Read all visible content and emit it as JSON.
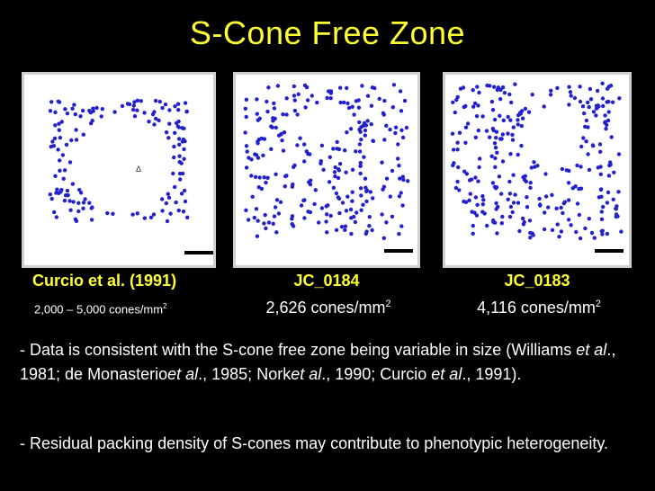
{
  "title": "S-Cone Free Zone",
  "colors": {
    "title": "#ffff33",
    "dot": "#2222cc",
    "background": "#000000"
  },
  "panels": [
    {
      "label": "Curcio et al. (1991)",
      "density": "2,000 – 5,000 cones/mm",
      "density_sup": "2",
      "marker": "Δ"
    },
    {
      "label": "JC_0184",
      "density": "2,626 cones/mm",
      "density_sup": "2"
    },
    {
      "label": "JC_0183",
      "density": "4,116 cones/mm",
      "density_sup": "2"
    }
  ],
  "bullets": {
    "b1_a": "- Data is consistent with the S-cone free zone being variable in size (Williams ",
    "b1_etal1": "et al",
    "b1_b": "., 1981; de Monasterio",
    "b1_etal2": "et al",
    "b1_c": "., 1985; Nork",
    "b1_etal3": "et al",
    "b1_d": "., 1990; Curcio ",
    "b1_etal4": "et al",
    "b1_e": "., 1991).",
    "b2": "- Residual packing density of S-cones may contribute to phenotypic heterogeneity."
  }
}
